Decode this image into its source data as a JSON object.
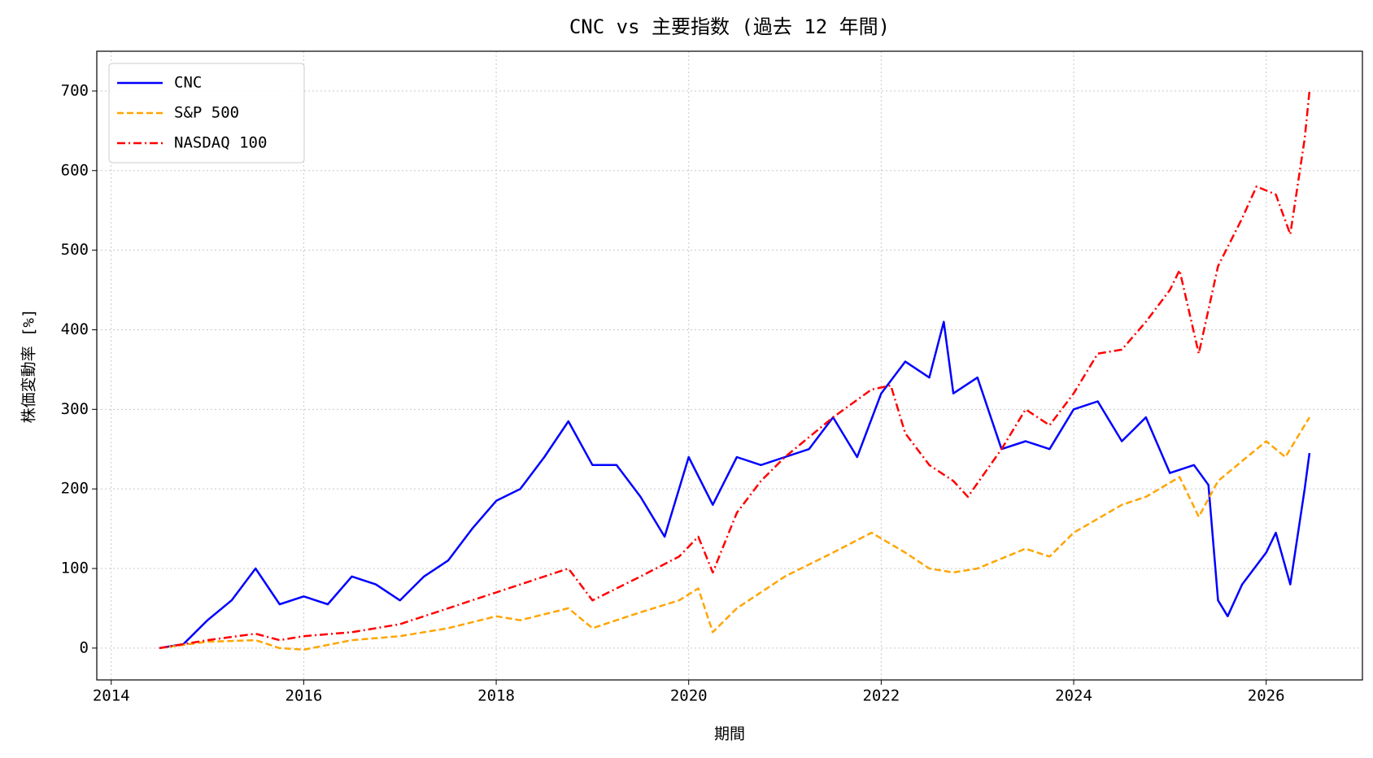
{
  "chart_data": {
    "type": "line",
    "title": "CNC vs 主要指数 (過去 12 年間)",
    "x_label": "期間",
    "y_label": "株価変動率 [%]",
    "xlim": [
      2013.85,
      2027.0
    ],
    "xticks": [
      2014,
      2016,
      2018,
      2020,
      2022,
      2024,
      2026
    ],
    "ylim": [
      -40,
      750
    ],
    "yticks": [
      0,
      100,
      200,
      300,
      400,
      500,
      600,
      700
    ],
    "grid": true,
    "legend": "upper left",
    "series": [
      {
        "name": "CNC",
        "color": "#0000ff",
        "linestyle": "solid",
        "x": [
          2014.5,
          2014.75,
          2015.0,
          2015.25,
          2015.5,
          2015.75,
          2016.0,
          2016.25,
          2016.5,
          2016.75,
          2017.0,
          2017.25,
          2017.5,
          2017.75,
          2018.0,
          2018.25,
          2018.5,
          2018.75,
          2019.0,
          2019.25,
          2019.5,
          2019.75,
          2020.0,
          2020.25,
          2020.5,
          2020.75,
          2021.0,
          2021.25,
          2021.5,
          2021.75,
          2022.0,
          2022.25,
          2022.5,
          2022.65,
          2022.75,
          2023.0,
          2023.25,
          2023.5,
          2023.75,
          2024.0,
          2024.25,
          2024.5,
          2024.75,
          2025.0,
          2025.25,
          2025.4,
          2025.5,
          2025.6,
          2025.75,
          2026.0,
          2026.1,
          2026.25,
          2026.4,
          2026.45
        ],
        "values": [
          0,
          5,
          35,
          60,
          100,
          55,
          65,
          55,
          90,
          80,
          60,
          90,
          110,
          150,
          185,
          200,
          240,
          285,
          230,
          230,
          190,
          140,
          240,
          180,
          240,
          230,
          240,
          250,
          290,
          240,
          320,
          360,
          340,
          410,
          320,
          340,
          250,
          260,
          250,
          300,
          310,
          260,
          290,
          220,
          230,
          205,
          60,
          40,
          80,
          120,
          145,
          80,
          200,
          245
        ]
      },
      {
        "name": "S&P 500",
        "color": "#ffa500",
        "linestyle": "dashed",
        "x": [
          2014.5,
          2015.0,
          2015.5,
          2015.75,
          2016.0,
          2016.5,
          2017.0,
          2017.5,
          2018.0,
          2018.25,
          2018.75,
          2019.0,
          2019.5,
          2019.9,
          2020.1,
          2020.25,
          2020.5,
          2021.0,
          2021.5,
          2021.9,
          2022.25,
          2022.5,
          2022.75,
          2023.0,
          2023.5,
          2023.75,
          2024.0,
          2024.5,
          2024.75,
          2025.1,
          2025.3,
          2025.5,
          2025.75,
          2026.0,
          2026.2,
          2026.45
        ],
        "values": [
          0,
          8,
          10,
          0,
          -2,
          10,
          15,
          25,
          40,
          35,
          50,
          25,
          45,
          60,
          75,
          20,
          50,
          90,
          120,
          145,
          120,
          100,
          95,
          100,
          125,
          115,
          145,
          180,
          190,
          215,
          165,
          210,
          235,
          260,
          240,
          290
        ]
      },
      {
        "name": "NASDAQ 100",
        "color": "#ff0000",
        "linestyle": "dashdot",
        "x": [
          2014.5,
          2015.0,
          2015.5,
          2015.75,
          2016.0,
          2016.5,
          2017.0,
          2017.5,
          2018.0,
          2018.5,
          2018.75,
          2019.0,
          2019.5,
          2019.9,
          2020.1,
          2020.25,
          2020.5,
          2020.75,
          2021.0,
          2021.5,
          2021.9,
          2022.1,
          2022.25,
          2022.5,
          2022.75,
          2022.9,
          2023.25,
          2023.5,
          2023.75,
          2024.0,
          2024.25,
          2024.5,
          2024.75,
          2025.0,
          2025.1,
          2025.3,
          2025.5,
          2025.75,
          2025.9,
          2026.1,
          2026.25,
          2026.4,
          2026.45
        ],
        "values": [
          0,
          10,
          18,
          10,
          15,
          20,
          30,
          50,
          70,
          90,
          100,
          60,
          90,
          115,
          140,
          95,
          170,
          210,
          240,
          290,
          325,
          330,
          270,
          230,
          210,
          190,
          250,
          300,
          280,
          320,
          370,
          375,
          410,
          450,
          475,
          370,
          480,
          540,
          580,
          570,
          520,
          640,
          700
        ]
      }
    ]
  }
}
